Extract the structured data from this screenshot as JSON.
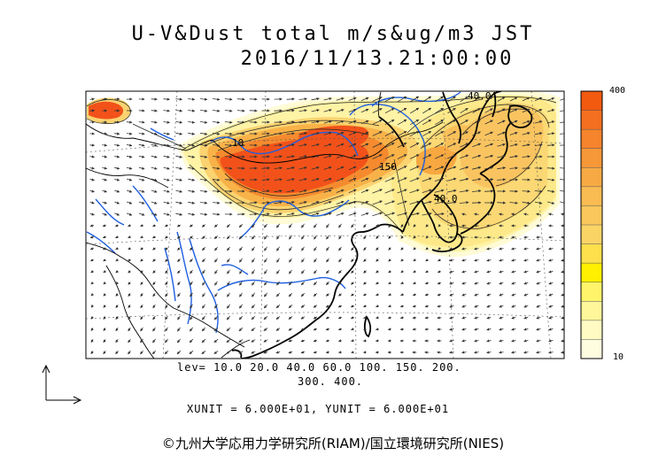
{
  "title": {
    "line1": "U-V&Dust total m/s&ug/m3 JST",
    "line2": "2016/11/13.21:00:00"
  },
  "contour_labels": [
    "40.0",
    "10",
    "150",
    "40.0"
  ],
  "legend": {
    "levels_line1": "lev= 10.0 20.0 40.0 60.0 100. 150. 200.",
    "levels_line2": "300. 400.",
    "units": "XUNIT = 6.000E+01, YUNIT = 6.000E+01",
    "colorbar_max": "400",
    "colorbar_min": "10",
    "colorbar_colors": [
      "#f25a10",
      "#f47020",
      "#f5842c",
      "#f69838",
      "#f7aa44",
      "#f9bc52",
      "#fac75c",
      "#fbd466",
      "#fde04c",
      "#fff000",
      "#fff46a",
      "#fff79a",
      "#fffbc2",
      "#fffde0"
    ]
  },
  "credit": "©九州大学応用力学研究所(RIAM)/国立環境研究所(NIES)",
  "colors": {
    "dust_high": "#f2521a",
    "dust_mid": "#f7a23a",
    "dust_low": "#fde06a",
    "dust_faint": "#fff8c8",
    "rivers": "#1f5fe0",
    "coast": "#000000"
  }
}
